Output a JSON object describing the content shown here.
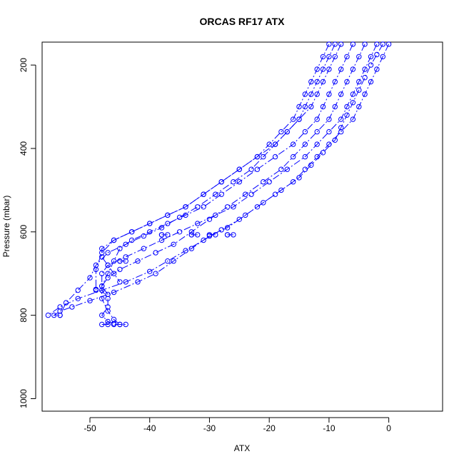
{
  "chart_data": {
    "type": "scatter",
    "title": "ORCAS RF17 ATX",
    "xlabel": "ATX",
    "ylabel": "Pressure (mbar)",
    "xlim": [
      -58,
      9
    ],
    "ylim": [
      1030,
      145
    ],
    "y_reversed": true,
    "grid": false,
    "x_ticks": [
      -50,
      -40,
      -30,
      -20,
      -10,
      0
    ],
    "y_ticks": [
      200,
      400,
      600,
      800,
      1000
    ],
    "color": "#0000ff",
    "marker": "open-circle",
    "line_style": "dash-dot",
    "series": [
      {
        "x": [
          -1,
          -2,
          -3,
          -4,
          -5,
          -6,
          -7,
          -8,
          -9,
          -11,
          -13,
          -15,
          -18,
          -21,
          -24,
          -27,
          -30,
          -33,
          -36,
          -39,
          -42,
          -46,
          -50,
          -53,
          -55,
          -56,
          -55
        ],
        "y": [
          150,
          175,
          200,
          230,
          260,
          290,
          320,
          350,
          380,
          410,
          440,
          470,
          500,
          530,
          560,
          590,
          610,
          640,
          670,
          700,
          720,
          745,
          765,
          780,
          790,
          800,
          800
        ]
      },
      {
        "x": [
          0,
          -1,
          -2,
          -3,
          -4,
          -5,
          -6,
          -8,
          -10,
          -12,
          -14,
          -16,
          -19,
          -22,
          -25,
          -28,
          -31,
          -34,
          -37,
          -40,
          -44,
          -48,
          -52,
          -55,
          -57
        ],
        "y": [
          150,
          180,
          210,
          240,
          270,
          300,
          330,
          360,
          390,
          420,
          450,
          480,
          510,
          540,
          570,
          595,
          620,
          645,
          670,
          695,
          720,
          740,
          760,
          780,
          800
        ]
      },
      {
        "x": [
          -2,
          -3,
          -4,
          -5,
          -6,
          -7,
          -8,
          -10,
          -12,
          -14,
          -17,
          -20,
          -23,
          -26,
          -29,
          -32,
          -35,
          -38,
          -41,
          -44,
          -47,
          -48,
          -48,
          -47,
          -47,
          -48,
          -47,
          -46
        ],
        "y": [
          150,
          180,
          210,
          240,
          270,
          300,
          330,
          360,
          390,
          420,
          450,
          480,
          510,
          540,
          560,
          580,
          600,
          620,
          640,
          660,
          680,
          700,
          740,
          760,
          780,
          800,
          815,
          820
        ]
      },
      {
        "x": [
          -4,
          -5,
          -6,
          -7,
          -8,
          -9,
          -10,
          -12,
          -14,
          -16,
          -18,
          -21,
          -24,
          -27,
          -30,
          -33,
          -36,
          -39,
          -42,
          -45,
          -47,
          -48,
          -47
        ],
        "y": [
          150,
          180,
          210,
          240,
          270,
          300,
          330,
          360,
          390,
          420,
          450,
          480,
          510,
          540,
          570,
          600,
          630,
          650,
          670,
          690,
          710,
          730,
          750
        ]
      },
      {
        "x": [
          -8,
          -9,
          -10,
          -11,
          -12,
          -13,
          -15,
          -17,
          -19,
          -22,
          -25,
          -28,
          -31,
          -34,
          -37,
          -40,
          -43,
          -46,
          -48,
          -48,
          -47,
          -46,
          -45
        ],
        "y": [
          150,
          180,
          210,
          240,
          270,
          300,
          330,
          360,
          390,
          420,
          450,
          480,
          510,
          540,
          560,
          580,
          600,
          620,
          640,
          660,
          680,
          700,
          720
        ]
      },
      {
        "x": [
          -10,
          -11,
          -12,
          -13,
          -14,
          -15,
          -16,
          -18,
          -20,
          -22,
          -25,
          -28,
          -31,
          -34,
          -37,
          -40,
          -43,
          -46,
          -48,
          -49,
          -49
        ],
        "y": [
          150,
          180,
          210,
          240,
          270,
          300,
          330,
          360,
          390,
          420,
          450,
          480,
          510,
          540,
          560,
          580,
          600,
          620,
          650,
          690,
          740
        ]
      },
      {
        "x": [
          -9,
          -10,
          -11,
          -12,
          -13,
          -14,
          -15,
          -17,
          -19,
          -21,
          -23,
          -26,
          -29,
          -32,
          -35,
          -38,
          -41,
          -44,
          -47,
          -49,
          -50,
          -52,
          -54,
          -55
        ],
        "y": [
          150,
          180,
          210,
          240,
          270,
          300,
          330,
          360,
          390,
          420,
          450,
          480,
          510,
          540,
          565,
          590,
          610,
          630,
          650,
          680,
          710,
          740,
          770,
          800
        ]
      },
      {
        "x": [
          -6,
          -7,
          -8,
          -9,
          -10,
          -11,
          -12,
          -14,
          -16,
          -19,
          -22,
          -25,
          -28,
          -31,
          -34,
          -37,
          -40,
          -43,
          -45,
          -46,
          -47,
          -48,
          -48,
          -47,
          -46,
          -45
        ],
        "y": [
          150,
          180,
          210,
          240,
          270,
          300,
          330,
          360,
          390,
          420,
          450,
          480,
          510,
          540,
          560,
          580,
          600,
          620,
          640,
          670,
          700,
          730,
          760,
          790,
          810,
          822
        ]
      },
      {
        "x": [
          -38,
          -38,
          -37
        ],
        "y": [
          607,
          607,
          607
        ]
      },
      {
        "x": [
          -33,
          -33,
          -32
        ],
        "y": [
          607,
          607,
          607
        ]
      },
      {
        "x": [
          -30,
          -30,
          -29
        ],
        "y": [
          607,
          607,
          607
        ]
      },
      {
        "x": [
          -27,
          -27,
          -26
        ],
        "y": [
          607,
          607,
          607
        ]
      },
      {
        "x": [
          -45,
          -45,
          -44
        ],
        "y": [
          670,
          670,
          670
        ]
      },
      {
        "x": [
          -49,
          -49
        ],
        "y": [
          738,
          738
        ]
      },
      {
        "x": [
          -48,
          -47,
          -46,
          -45,
          -44
        ],
        "y": [
          822,
          822,
          822,
          822,
          822
        ]
      }
    ]
  }
}
